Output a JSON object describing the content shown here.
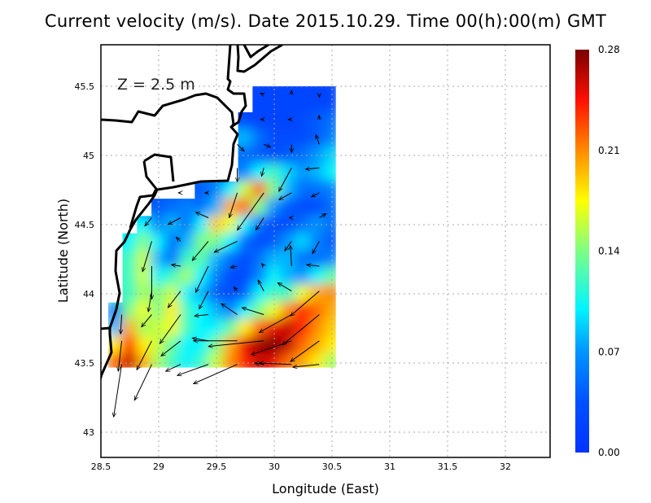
{
  "title": "Current velocity (m/s). Date 2015.10.29. Time 00(h):00(m) GMT",
  "chart_data": {
    "type": "heatmap",
    "title": "Current velocity (m/s). Date 2015.10.29. Time 00(h):00(m) GMT",
    "annotation": "Z = 2.5 m",
    "xlabel": "Longitude (East)",
    "ylabel": "Latitude (North)",
    "xlim": [
      28.5,
      32.4
    ],
    "ylim": [
      42.82,
      45.8
    ],
    "xticks": [
      "28.5",
      "29",
      "29.5",
      "30",
      "30.5",
      "31",
      "31.5",
      "32"
    ],
    "xtick_values": [
      28.5,
      29,
      29.5,
      30,
      30.5,
      31,
      31.5,
      32
    ],
    "yticks": [
      "45.5",
      "45",
      "44.5",
      "44",
      "43.5",
      "43"
    ],
    "ytick_values": [
      45.5,
      45,
      44.5,
      44,
      43.5,
      43
    ],
    "grid": true,
    "colorbar": {
      "labels": [
        "0.28",
        "0.21",
        "0.14",
        "0.07",
        "0.00"
      ],
      "values": [
        0.28,
        0.21,
        0.14,
        0.07,
        0.0
      ],
      "range": [
        0,
        0.28
      ],
      "placement": "right"
    },
    "colormap": [
      {
        "v": 0.0,
        "c": "#0033ff"
      },
      {
        "v": 0.035,
        "c": "#0050ff"
      },
      {
        "v": 0.07,
        "c": "#0095ff"
      },
      {
        "v": 0.1,
        "c": "#00f5ff"
      },
      {
        "v": 0.14,
        "c": "#7dff85"
      },
      {
        "v": 0.175,
        "c": "#ffff00"
      },
      {
        "v": 0.21,
        "c": "#ff8a00"
      },
      {
        "v": 0.245,
        "c": "#ff1000"
      },
      {
        "v": 0.28,
        "c": "#7a0000"
      }
    ],
    "lons": [
      28.625,
      28.75,
      28.875,
      29,
      29.125,
      29.25,
      29.375,
      29.5,
      29.625,
      29.75,
      29.875,
      30,
      30.125,
      30.25,
      30.375,
      30.5
    ],
    "lats": [
      45.5,
      45.375,
      45.25,
      45.125,
      45,
      44.875,
      44.75,
      44.625,
      44.5,
      44.375,
      44.25,
      44.125,
      44,
      43.875,
      43.75,
      43.625,
      43.5
    ],
    "values": [
      [
        null,
        null,
        null,
        null,
        null,
        null,
        null,
        null,
        null,
        null,
        0.02,
        0.02,
        0.02,
        0.02,
        0.02,
        0.02
      ],
      [
        null,
        null,
        null,
        null,
        null,
        null,
        null,
        null,
        null,
        null,
        0.02,
        0.02,
        0.02,
        0.02,
        0.02,
        0.02
      ],
      [
        null,
        null,
        null,
        null,
        null,
        null,
        null,
        null,
        null,
        0.03,
        0.02,
        0.02,
        0.02,
        0.03,
        0.04,
        0.05
      ],
      [
        null,
        null,
        null,
        null,
        null,
        null,
        null,
        null,
        null,
        0.08,
        0.05,
        0.03,
        0.03,
        0.03,
        0.04,
        0.06
      ],
      [
        null,
        null,
        null,
        null,
        null,
        null,
        null,
        null,
        null,
        0.05,
        0.04,
        0.03,
        0.04,
        0.05,
        0.07,
        0.09
      ],
      [
        null,
        null,
        null,
        null,
        null,
        null,
        null,
        null,
        null,
        0.06,
        0.1,
        0.12,
        0.09,
        0.07,
        0.08,
        0.1
      ],
      [
        null,
        null,
        null,
        null,
        null,
        null,
        0.04,
        0.06,
        0.1,
        0.16,
        0.22,
        0.14,
        0.08,
        0.05,
        0.05,
        0.06
      ],
      [
        null,
        null,
        null,
        0.04,
        0.05,
        0.06,
        0.05,
        0.08,
        0.2,
        0.22,
        0.14,
        0.07,
        0.04,
        0.03,
        0.03,
        0.05
      ],
      [
        null,
        null,
        0.1,
        0.06,
        0.08,
        0.05,
        0.1,
        0.19,
        0.17,
        0.1,
        0.05,
        0.03,
        0.03,
        0.05,
        0.07,
        0.05
      ],
      [
        null,
        0.1,
        0.14,
        0.1,
        0.05,
        0.08,
        0.14,
        0.14,
        0.1,
        0.05,
        0.03,
        0.04,
        0.07,
        0.09,
        0.06,
        0.04
      ],
      [
        null,
        0.12,
        0.16,
        0.08,
        0.05,
        0.12,
        0.13,
        0.08,
        0.05,
        0.03,
        0.05,
        0.08,
        0.08,
        0.05,
        0.05,
        0.06
      ],
      [
        null,
        0.12,
        0.16,
        0.1,
        0.12,
        0.15,
        0.1,
        0.06,
        0.03,
        0.03,
        0.06,
        0.1,
        0.08,
        0.07,
        0.1,
        0.13
      ],
      [
        null,
        0.12,
        0.15,
        0.14,
        0.16,
        0.1,
        0.08,
        0.04,
        0.03,
        0.04,
        0.1,
        0.12,
        0.12,
        0.17,
        0.2,
        0.21
      ],
      [
        0.05,
        0.14,
        0.17,
        0.14,
        0.18,
        0.12,
        0.1,
        0.08,
        0.06,
        0.1,
        0.14,
        0.17,
        0.21,
        0.24,
        0.22,
        0.2
      ],
      [
        0.08,
        0.2,
        0.15,
        0.16,
        0.17,
        0.12,
        0.1,
        0.1,
        0.13,
        0.18,
        0.22,
        0.25,
        0.26,
        0.24,
        0.21,
        0.19
      ],
      [
        0.18,
        0.24,
        0.18,
        0.16,
        0.13,
        0.1,
        0.1,
        0.14,
        0.2,
        0.25,
        0.27,
        0.28,
        0.26,
        0.22,
        0.2,
        0.18
      ],
      [
        0.22,
        0.26,
        0.2,
        0.15,
        0.12,
        0.1,
        0.12,
        0.16,
        0.21,
        0.24,
        0.26,
        0.25,
        0.22,
        0.2,
        0.18,
        0.15
      ]
    ],
    "vectors_fields": [
      "lon",
      "lat",
      "dlon",
      "dlat"
    ],
    "vectors": [
      [
        29.91,
        45.44,
        -0.03,
        0.01
      ],
      [
        30.15,
        45.44,
        0,
        0.03
      ],
      [
        30.39,
        45.44,
        0,
        -0.02
      ],
      [
        29.91,
        45.26,
        -0.03,
        0
      ],
      [
        30.15,
        45.26,
        -0.03,
        0
      ],
      [
        30.39,
        45.26,
        0,
        0.03
      ],
      [
        29.68,
        45.08,
        0.06,
        -0.05
      ],
      [
        29.91,
        45.08,
        0.06,
        -0.02
      ],
      [
        30.15,
        45.08,
        0,
        -0.06
      ],
      [
        30.39,
        45.08,
        -0.03,
        0.07
      ],
      [
        29.68,
        44.91,
        0,
        -0.1
      ],
      [
        29.91,
        44.91,
        -0.02,
        -0.06
      ],
      [
        30.15,
        44.91,
        -0.11,
        -0.17
      ],
      [
        30.39,
        44.91,
        -0.12,
        -0.01
      ],
      [
        29.19,
        44.73,
        -0.02,
        0
      ],
      [
        29.43,
        44.73,
        -0.03,
        0
      ],
      [
        29.68,
        44.73,
        -0.07,
        -0.18
      ],
      [
        29.91,
        44.73,
        -0.23,
        -0.27
      ],
      [
        30.15,
        44.73,
        -0.11,
        -0.05
      ],
      [
        30.39,
        44.73,
        -0.07,
        -0.03
      ],
      [
        28.94,
        44.55,
        -0.06,
        -0.06
      ],
      [
        29.19,
        44.55,
        -0.11,
        -0.05
      ],
      [
        29.43,
        44.55,
        -0.11,
        0.04
      ],
      [
        29.91,
        44.55,
        -0.07,
        -0.09
      ],
      [
        30.15,
        44.55,
        -0.02,
        0
      ],
      [
        30.39,
        44.55,
        0.06,
        0.03
      ],
      [
        28.94,
        44.38,
        -0.08,
        -0.22
      ],
      [
        29.19,
        44.38,
        -0.04,
        0.03
      ],
      [
        29.43,
        44.38,
        -0.14,
        -0.14
      ],
      [
        29.68,
        44.38,
        -0.2,
        -0.08
      ],
      [
        30.15,
        44.38,
        -0.06,
        -0.07
      ],
      [
        30.39,
        44.38,
        -0.06,
        -0.09
      ],
      [
        28.94,
        44.2,
        0,
        -0.24
      ],
      [
        29.19,
        44.2,
        -0.08,
        0.01
      ],
      [
        29.43,
        44.2,
        -0.11,
        -0.19
      ],
      [
        29.68,
        44.2,
        -0.06,
        -0.01
      ],
      [
        29.91,
        44.2,
        -0.02,
        0.02
      ],
      [
        30.15,
        44.2,
        -0.01,
        0.15
      ],
      [
        30.39,
        44.2,
        -0.11,
        0.01
      ],
      [
        28.94,
        44.02,
        -0.03,
        -0.15
      ],
      [
        29.19,
        44.02,
        -0.11,
        -0.12
      ],
      [
        29.43,
        44.02,
        -0.08,
        -0.13
      ],
      [
        29.68,
        44.02,
        -0.03,
        0.03
      ],
      [
        29.91,
        44.02,
        -0.05,
        0.08
      ],
      [
        30.15,
        44.02,
        -0.12,
        0.06
      ],
      [
        30.39,
        44.02,
        -0.25,
        -0.18
      ],
      [
        28.68,
        43.85,
        -0.01,
        -0.14
      ],
      [
        28.94,
        43.85,
        -0.09,
        -0.09
      ],
      [
        29.19,
        43.85,
        -0.18,
        -0.21
      ],
      [
        29.43,
        43.85,
        -0.12,
        -0.01
      ],
      [
        29.68,
        43.85,
        -0.14,
        0.08
      ],
      [
        29.91,
        43.85,
        -0.19,
        0.05
      ],
      [
        30.15,
        43.85,
        -0.28,
        -0.13
      ],
      [
        30.39,
        43.85,
        -0.32,
        -0.22
      ],
      [
        28.68,
        43.66,
        -0.03,
        -0.22
      ],
      [
        28.94,
        43.66,
        -0.13,
        -0.21
      ],
      [
        29.19,
        43.66,
        -0.17,
        -0.11
      ],
      [
        29.43,
        43.66,
        -0.14,
        0.02
      ],
      [
        29.68,
        43.66,
        -0.38,
        0
      ],
      [
        29.91,
        43.66,
        -0.48,
        -0.04
      ],
      [
        30.15,
        43.66,
        -0.35,
        -0.1
      ],
      [
        30.39,
        43.66,
        -0.25,
        -0.15
      ],
      [
        28.68,
        43.49,
        -0.07,
        -0.38
      ],
      [
        28.94,
        43.49,
        -0.15,
        -0.26
      ],
      [
        29.19,
        43.49,
        -0.13,
        -0.05
      ],
      [
        29.43,
        43.49,
        -0.27,
        -0.08
      ],
      [
        29.68,
        43.49,
        -0.38,
        -0.14
      ],
      [
        29.91,
        43.49,
        -0.08,
        0.01
      ],
      [
        30.15,
        43.49,
        -0.28,
        0.01
      ],
      [
        30.39,
        43.49,
        -0.23,
        -0.02
      ]
    ]
  }
}
